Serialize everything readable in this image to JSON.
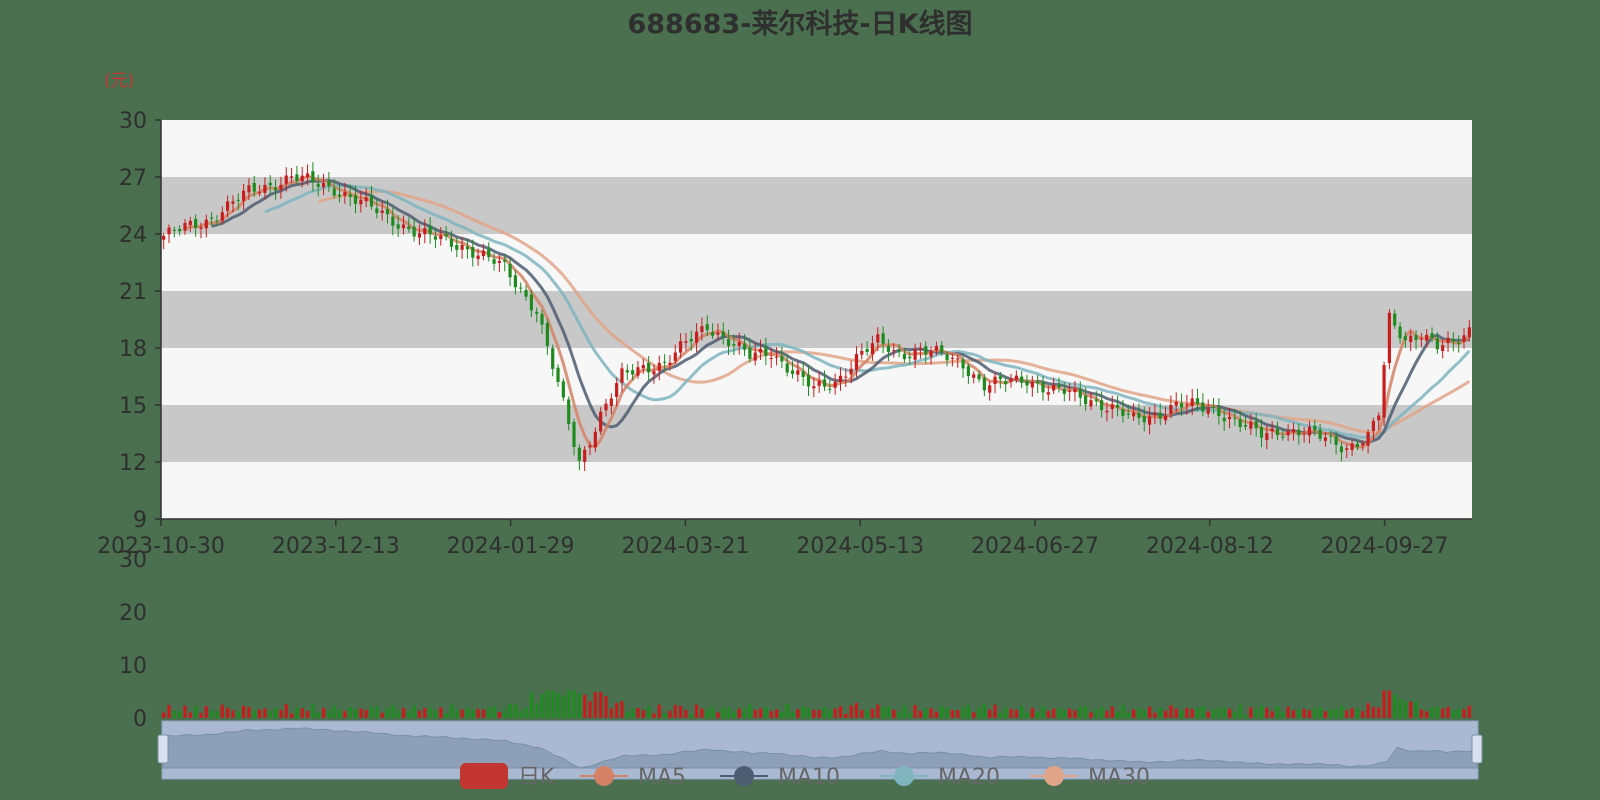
{
  "chart_data": {
    "type": "candlestick",
    "title": "688683-莱尔科技-日K线图",
    "unit_label": "(元)",
    "y_ticks": [
      "30",
      "27",
      "24",
      "21",
      "18",
      "15",
      "12",
      "9"
    ],
    "ylim": [
      9,
      30
    ],
    "x_tick_labels": [
      "2023-10-30",
      "2023-12-13",
      "2024-01-29",
      "2024-03-21",
      "2024-05-13",
      "2024-06-27",
      "2024-08-12",
      "2024-09-27"
    ],
    "volume_ticks": [
      "30",
      "20",
      "10",
      "0"
    ],
    "volume_ylim": [
      0,
      30
    ],
    "legend": [
      {
        "name": "日K",
        "color": "#c23531"
      },
      {
        "name": "MA5",
        "color": "#d48265"
      },
      {
        "name": "MA10",
        "color": "#4e5d72"
      },
      {
        "name": "MA20",
        "color": "#7fb5bf"
      },
      {
        "name": "MA30",
        "color": "#e0a488"
      }
    ],
    "colors": {
      "up": "#c71d1d",
      "down": "#1f8b1f",
      "grid_band": "#c8c8c8",
      "plot_bg": "#f7f7f7"
    },
    "close_anchors": [
      [
        0,
        23.9
      ],
      [
        8,
        24.7
      ],
      [
        16,
        26.2
      ],
      [
        24,
        27.0
      ],
      [
        32,
        26.4
      ],
      [
        40,
        25.2
      ],
      [
        48,
        24.0
      ],
      [
        56,
        23.4
      ],
      [
        64,
        22.2
      ],
      [
        70,
        20.0
      ],
      [
        74,
        16.0
      ],
      [
        78,
        12.0
      ],
      [
        82,
        14.5
      ],
      [
        86,
        16.5
      ],
      [
        90,
        17.0
      ],
      [
        94,
        17.2
      ],
      [
        98,
        18.2
      ],
      [
        102,
        19.2
      ],
      [
        106,
        18.4
      ],
      [
        110,
        17.5
      ],
      [
        114,
        17.8
      ],
      [
        118,
        16.8
      ],
      [
        122,
        15.8
      ],
      [
        126,
        16.2
      ],
      [
        130,
        17.5
      ],
      [
        134,
        18.3
      ],
      [
        138,
        17.7
      ],
      [
        142,
        17.9
      ],
      [
        146,
        17.6
      ],
      [
        150,
        17.2
      ],
      [
        154,
        16.0
      ],
      [
        158,
        16.2
      ],
      [
        162,
        16.4
      ],
      [
        166,
        15.8
      ],
      [
        170,
        15.6
      ],
      [
        174,
        15.3
      ],
      [
        178,
        14.8
      ],
      [
        182,
        14.2
      ],
      [
        186,
        14.5
      ],
      [
        190,
        15.0
      ],
      [
        194,
        14.9
      ],
      [
        198,
        14.7
      ],
      [
        202,
        14.0
      ],
      [
        206,
        13.4
      ],
      [
        210,
        13.7
      ],
      [
        214,
        13.6
      ],
      [
        218,
        13.2
      ],
      [
        222,
        12.8
      ],
      [
        226,
        13.3
      ],
      [
        228,
        14.5
      ],
      [
        230,
        19.5
      ],
      [
        233,
        18.5
      ],
      [
        236,
        18.8
      ],
      [
        239,
        18.0
      ],
      [
        242,
        18.2
      ],
      [
        245,
        19.0
      ]
    ],
    "n_days": 246
  }
}
